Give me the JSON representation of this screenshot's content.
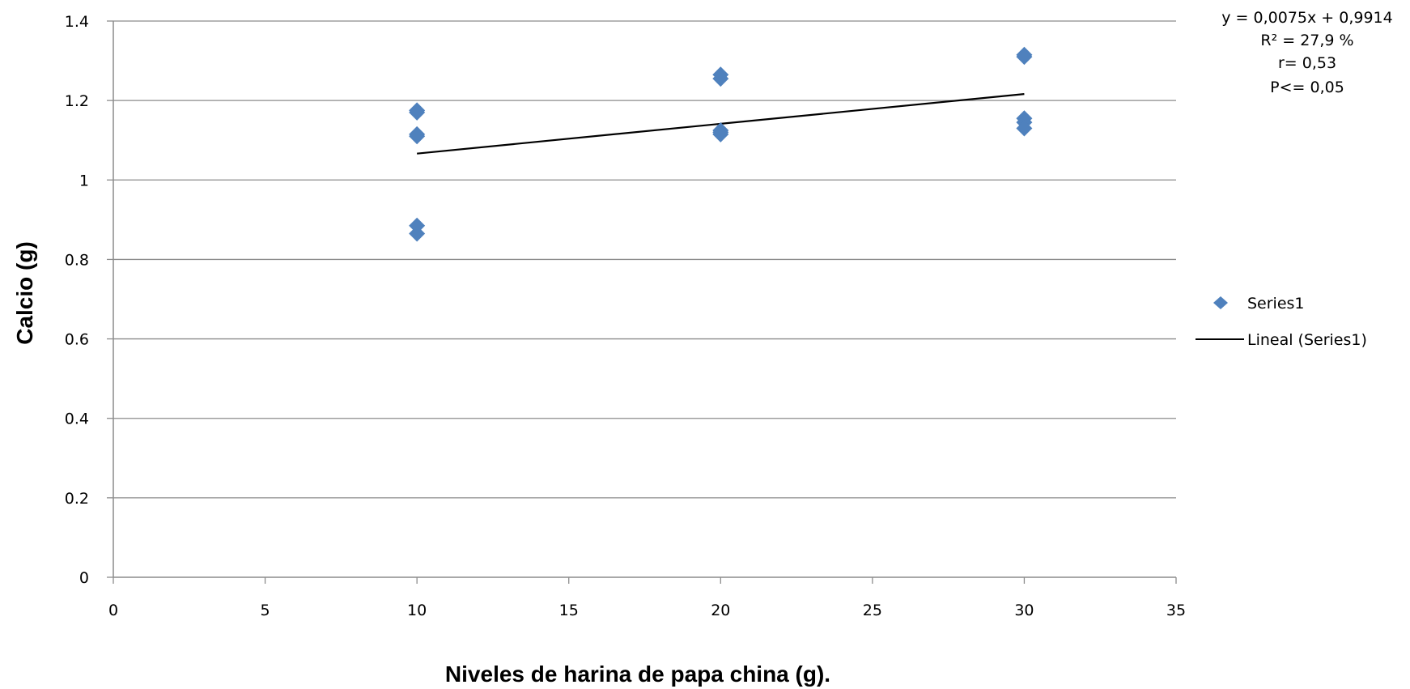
{
  "chart_data": {
    "type": "scatter",
    "xlabel": "Niveles de harina de papa china (g).",
    "ylabel": "Calcio  (g)",
    "xlim": [
      0,
      35
    ],
    "ylim": [
      0,
      1.4
    ],
    "xticks": [
      "0",
      "5",
      "10",
      "15",
      "20",
      "25",
      "30",
      "35"
    ],
    "yticks": [
      "0",
      "0.2",
      "0.4",
      "0.6",
      "0.8",
      "1",
      "1.2",
      "1.4"
    ],
    "grid": "horizontal",
    "legend_position": "right",
    "series": [
      {
        "name": "Series1",
        "marker": "diamond",
        "color": "#4F81BD",
        "points": [
          [
            10,
            1.175
          ],
          [
            10,
            1.17
          ],
          [
            10,
            1.115
          ],
          [
            10,
            1.11
          ],
          [
            10,
            0.885
          ],
          [
            10,
            0.865
          ],
          [
            20,
            1.265
          ],
          [
            20,
            1.255
          ],
          [
            20,
            1.125
          ],
          [
            20,
            1.12
          ],
          [
            20,
            1.115
          ],
          [
            30,
            1.315
          ],
          [
            30,
            1.31
          ],
          [
            30,
            1.155
          ],
          [
            30,
            1.145
          ],
          [
            30,
            1.13
          ]
        ]
      },
      {
        "name": "Lineal (Series1)",
        "type": "line",
        "color": "#000000",
        "x": [
          10,
          30
        ],
        "y": [
          1.0664,
          1.2164
        ]
      }
    ],
    "annotations": [
      "y = 0,0075x + 0,9914",
      "R² = 27,9 %",
      "r= 0,53",
      "P<= 0,05"
    ]
  }
}
